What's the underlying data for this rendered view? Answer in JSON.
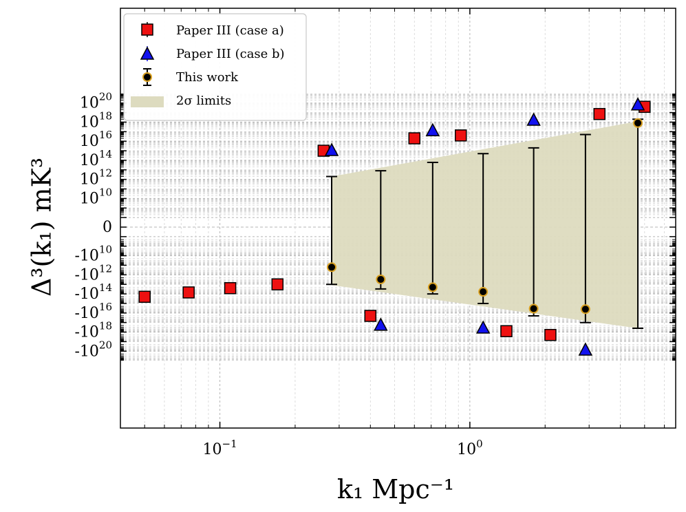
{
  "chart_data": {
    "type": "scatter",
    "xlabel": "k₁ Mpc⁻¹",
    "ylabel": "Δ³(k₁) mK³",
    "xscale": "log",
    "yscale": "symlog",
    "xlim": [
      0.04,
      6.0
    ],
    "ylim": [
      -1e+20,
      1e+20
    ],
    "grid": true,
    "legend_position": "top-left",
    "x_ticks": [
      {
        "value": 0.1,
        "base": "10",
        "exp": "−1"
      },
      {
        "value": 1.0,
        "base": "10",
        "exp": "0"
      }
    ],
    "y_ticks": [
      {
        "value": 1e+20,
        "label": "10",
        "exp": "20"
      },
      {
        "value": 1e+18,
        "label": "10",
        "exp": "18"
      },
      {
        "value": 1e+16,
        "label": "10",
        "exp": "16"
      },
      {
        "value": 100000000000000.0,
        "label": "10",
        "exp": "14"
      },
      {
        "value": 1000000000000.0,
        "label": "10",
        "exp": "12"
      },
      {
        "value": 10000000000.0,
        "label": "10",
        "exp": "10"
      },
      {
        "value": 0,
        "label": "0",
        "exp": ""
      },
      {
        "value": -10000000000.0,
        "label": "-10",
        "exp": "10"
      },
      {
        "value": -1000000000000.0,
        "label": "-10",
        "exp": "12"
      },
      {
        "value": -100000000000000.0,
        "label": "-10",
        "exp": "14"
      },
      {
        "value": -1e+16,
        "label": "-10",
        "exp": "16"
      },
      {
        "value": -1e+18,
        "label": "-10",
        "exp": "18"
      },
      {
        "value": -1e+20,
        "label": "-10",
        "exp": "20"
      }
    ],
    "series": [
      {
        "name": "Paper III (case a)",
        "marker": "square",
        "color": "#ee1111",
        "x": [
          0.05,
          0.075,
          0.11,
          0.17,
          0.26,
          0.4,
          0.6,
          0.92,
          1.4,
          2.1,
          3.3,
          5.0
        ],
        "y": [
          -200000000000000.0,
          -70000000000000.0,
          -25000000000000.0,
          -10000000000000.0,
          1000000000000000.0,
          -2e+16,
          2e+16,
          4e+16,
          -8e+17,
          -2e+18,
          7e+18,
          4e+19
        ]
      },
      {
        "name": "Paper III (case b)",
        "marker": "triangle",
        "color": "#1111ee",
        "x": [
          0.28,
          0.44,
          0.71,
          1.13,
          1.8,
          2.9,
          4.7
        ],
        "y": [
          1000000000000000.0,
          -2e+17,
          1.2e+17,
          -4e+17,
          1.5e+18,
          -8e+19,
          6e+19
        ]
      },
      {
        "name": "This work",
        "marker": "circle",
        "color": "#000000",
        "edge_color": "#d9a020",
        "x": [
          0.28,
          0.44,
          0.71,
          1.13,
          1.8,
          2.9,
          4.7
        ],
        "y": [
          -160000000000.0,
          -3000000000000.0,
          -20000000000000.0,
          -60000000000000.0,
          -3500000000000000.0,
          -4000000000000000.0,
          8e+17
        ],
        "err_high": [
          2000000000000.0,
          8000000000000.0,
          60000000000000.0,
          500000000000000.0,
          2000000000000000.0,
          5e+16,
          2e+18
        ],
        "err_low": [
          -10000000000000.0,
          -30000000000000.0,
          -100000000000000.0,
          -1000000000000000.0,
          -2e+16,
          -1e+17,
          -4e+17
        ]
      }
    ],
    "band": {
      "name": "2σ limits",
      "color": "#dddbbf",
      "x": [
        0.28,
        4.7
      ],
      "upper": [
        2000000000000.0,
        1.2e+18
      ],
      "lower": [
        -12000000000000.0,
        -4e+17
      ]
    }
  }
}
